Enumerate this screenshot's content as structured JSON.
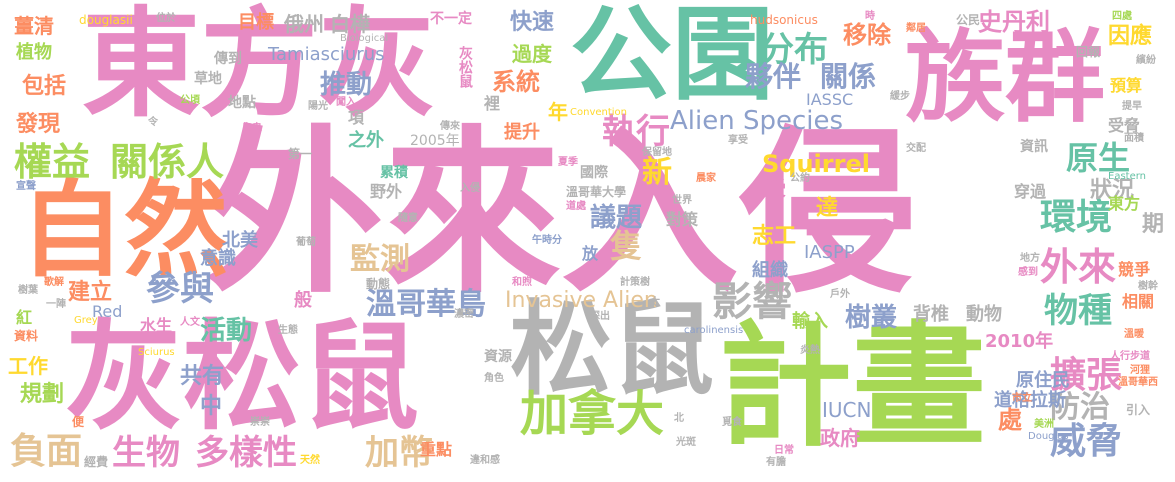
{
  "title": "",
  "colors": {
    "pink": "#e88bc4",
    "green": "#a6d854",
    "orange": "#fc8d62",
    "teal": "#66c2a5",
    "gray": "#b3b3b3",
    "yellow": "#ffd92f",
    "blue": "#8da0cb",
    "tan": "#e5c494"
  },
  "words": [
    {
      "text": "外來入侵",
      "color": "#e78ac3"
    },
    {
      "text": "東方灰",
      "color": "#e78ac3"
    },
    {
      "text": "族群",
      "color": "#e78ac3"
    },
    {
      "text": "公園",
      "color": "#66c2a5"
    },
    {
      "text": "自然",
      "color": "#fc8d62"
    },
    {
      "text": "灰松鼠",
      "color": "#e78ac3"
    },
    {
      "text": "松鼠",
      "color": "#b3b3b3"
    },
    {
      "text": "計畫",
      "color": "#a6d854"
    },
    {
      "text": "加拿大",
      "color": "#a6d854"
    },
    {
      "text": "權益",
      "color": "#a6d854"
    },
    {
      "text": "關係人",
      "color": "#a6d854"
    },
    {
      "text": "分布",
      "color": "#66c2a5"
    },
    {
      "text": "夥伴",
      "color": "#8da0cb"
    },
    {
      "text": "關係",
      "color": "#8da0cb"
    },
    {
      "text": "Alien Species",
      "color": "#8da0cb"
    },
    {
      "text": "執行",
      "color": "#e78ac3"
    },
    {
      "text": "影響",
      "color": "#b3b3b3"
    },
    {
      "text": "環境",
      "color": "#66c2a5"
    },
    {
      "text": "外來",
      "color": "#e78ac3"
    },
    {
      "text": "物種",
      "color": "#66c2a5"
    },
    {
      "text": "原生",
      "color": "#66c2a5"
    },
    {
      "text": "擴張",
      "color": "#e78ac3"
    },
    {
      "text": "威脅",
      "color": "#8da0cb"
    },
    {
      "text": "防治",
      "color": "#b3b3b3"
    },
    {
      "text": "生物",
      "color": "#e78ac3"
    },
    {
      "text": "多樣性",
      "color": "#e78ac3"
    },
    {
      "text": "負面",
      "color": "#e5c494"
    },
    {
      "text": "加幣",
      "color": "#e5c494"
    },
    {
      "text": "參與",
      "color": "#8da0cb"
    },
    {
      "text": "溫哥華島",
      "color": "#8da0cb"
    },
    {
      "text": "Invasive Alien",
      "color": "#e5c494"
    },
    {
      "text": "Squirrel",
      "color": "#ffd92f"
    },
    {
      "text": "監測",
      "color": "#e5c494"
    },
    {
      "text": "議題",
      "color": "#8da0cb"
    },
    {
      "text": "推動",
      "color": "#8da0cb"
    },
    {
      "text": "Tamiasciurus",
      "color": "#8da0cb"
    },
    {
      "text": "快速",
      "color": "#8da0cb"
    },
    {
      "text": "過度",
      "color": "#a6d854"
    },
    {
      "text": "系統",
      "color": "#fc8d62"
    },
    {
      "text": "移除",
      "color": "#fc8d62"
    },
    {
      "text": "史丹利",
      "color": "#e78ac3"
    },
    {
      "text": "因應",
      "color": "#ffd92f"
    },
    {
      "text": "預算",
      "color": "#ffd92f"
    },
    {
      "text": "受脅",
      "color": "#b3b3b3"
    },
    {
      "text": "狀況",
      "color": "#b3b3b3"
    },
    {
      "text": "東方",
      "color": "#a6d854"
    },
    {
      "text": "樹叢",
      "color": "#8da0cb"
    },
    {
      "text": "輸入",
      "color": "#a6d854"
    },
    {
      "text": "2010年",
      "color": "#e78ac3"
    },
    {
      "text": "原住民",
      "color": "#8da0cb"
    },
    {
      "text": "道格拉斯",
      "color": "#8da0cb"
    },
    {
      "text": "IUCN",
      "color": "#8da0cb"
    },
    {
      "text": "政府",
      "color": "#e78ac3"
    },
    {
      "text": "IASSC",
      "color": "#8da0cb"
    },
    {
      "text": "IASPP",
      "color": "#8da0cb"
    },
    {
      "text": "志工",
      "color": "#ffd92f"
    },
    {
      "text": "組織",
      "color": "#8da0cb"
    },
    {
      "text": "背椎",
      "color": "#b3b3b3"
    },
    {
      "text": "動物",
      "color": "#b3b3b3"
    },
    {
      "text": "活動",
      "color": "#66c2a5"
    },
    {
      "text": "共有",
      "color": "#8da0cb"
    },
    {
      "text": "工作",
      "color": "#ffd92f"
    },
    {
      "text": "規劃",
      "color": "#a6d854"
    },
    {
      "text": "建立",
      "color": "#fc8d62"
    },
    {
      "text": "包括",
      "color": "#fc8d62"
    },
    {
      "text": "發現",
      "color": "#fc8d62"
    },
    {
      "text": "植物",
      "color": "#a6d854"
    },
    {
      "text": "薑清",
      "color": "#fc8d62"
    },
    {
      "text": "douglasii",
      "color": "#ffd92f"
    },
    {
      "text": "目標",
      "color": "#fc8d62"
    },
    {
      "text": "俄州",
      "color": "#b3b3b3"
    },
    {
      "text": "白樺",
      "color": "#b3b3b3"
    },
    {
      "text": "不一定",
      "color": "#e78ac3"
    },
    {
      "text": "灰松鼠",
      "color": "#e78ac3"
    },
    {
      "text": "hudsonicus",
      "color": "#fc8d62"
    },
    {
      "text": "公民",
      "color": "#b3b3b3"
    },
    {
      "text": "Red",
      "color": "#8da0cb"
    },
    {
      "text": "水生",
      "color": "#e78ac3"
    },
    {
      "text": "中",
      "color": "#8da0cb"
    },
    {
      "text": "處",
      "color": "#fc8d62"
    },
    {
      "text": "國際",
      "color": "#b3b3b3"
    },
    {
      "text": "溫哥華大學",
      "color": "#b3b3b3"
    },
    {
      "text": "新",
      "color": "#ffd92f"
    },
    {
      "text": "隻",
      "color": "#e5c494"
    },
    {
      "text": "放",
      "color": "#8da0cb"
    },
    {
      "text": "受",
      "color": "#e78ac3"
    },
    {
      "text": "達",
      "color": "#ffd92f"
    },
    {
      "text": "期",
      "color": "#b3b3b3"
    },
    {
      "text": "競爭",
      "color": "#fc8d62"
    },
    {
      "text": "相關",
      "color": "#fc8d62"
    },
    {
      "text": "穿過",
      "color": "#b3b3b3"
    },
    {
      "text": "資訊",
      "color": "#b3b3b3"
    },
    {
      "text": "2005年",
      "color": "#b3b3b3"
    },
    {
      "text": "之外",
      "color": "#66c2a5"
    },
    {
      "text": "提升",
      "color": "#fc8d62"
    },
    {
      "text": "草地",
      "color": "#b3b3b3"
    },
    {
      "text": "傳到",
      "color": "#b3b3b3"
    },
    {
      "text": "地點",
      "color": "#b3b3b3"
    },
    {
      "text": "北美",
      "color": "#8da0cb"
    },
    {
      "text": "意識",
      "color": "#8da0cb"
    },
    {
      "text": "年",
      "color": "#ffd92f"
    },
    {
      "text": "裡",
      "color": "#b3b3b3"
    },
    {
      "text": "野外",
      "color": "#b3b3b3"
    },
    {
      "text": "累積",
      "color": "#66c2a5"
    },
    {
      "text": "項",
      "color": "#b3b3b3"
    },
    {
      "text": "重點",
      "color": "#fc8d62"
    },
    {
      "text": "資源",
      "color": "#b3b3b3"
    },
    {
      "text": "對策",
      "color": "#b3b3b3"
    },
    {
      "text": "回報",
      "color": "#b3b3b3"
    },
    {
      "text": "Convention",
      "color": "#ffd92f"
    },
    {
      "text": "Biological",
      "color": "#b3b3b3"
    },
    {
      "text": "carolinensis",
      "color": "#8da0cb"
    },
    {
      "text": "Douglas",
      "color": "#8da0cb"
    },
    {
      "text": "Sciurus",
      "color": "#ffd92f"
    },
    {
      "text": "Grey",
      "color": "#ffd92f"
    },
    {
      "text": "Eastern",
      "color": "#66c2a5"
    },
    {
      "text": "樹幹",
      "color": "#b3b3b3"
    },
    {
      "text": "紅",
      "color": "#a6d854"
    },
    {
      "text": "資料",
      "color": "#fc8d62"
    },
    {
      "text": "般",
      "color": "#e78ac3"
    },
    {
      "text": "第一",
      "color": "#b3b3b3"
    },
    {
      "text": "動態",
      "color": "#b3b3b3"
    },
    {
      "text": "人文",
      "color": "#e78ac3"
    },
    {
      "text": "經費",
      "color": "#b3b3b3"
    },
    {
      "text": "違和感",
      "color": "#b3b3b3"
    },
    {
      "text": "人行步道",
      "color": "#e78ac3"
    },
    {
      "text": "溫哥華西",
      "color": "#fc8d62"
    },
    {
      "text": "河狸",
      "color": "#fc8d62"
    },
    {
      "text": "引入",
      "color": "#b3b3b3"
    },
    {
      "text": "美洲",
      "color": "#a6d854"
    },
    {
      "text": "市立",
      "color": "#fc8d62"
    },
    {
      "text": "光斑",
      "color": "#b3b3b3"
    },
    {
      "text": "覓食",
      "color": "#b3b3b3"
    },
    {
      "text": "日常",
      "color": "#e78ac3"
    },
    {
      "text": "有膽",
      "color": "#b3b3b3"
    },
    {
      "text": "天然",
      "color": "#ffd92f"
    },
    {
      "text": "崇崇",
      "color": "#b3b3b3"
    },
    {
      "text": "便",
      "color": "#fc8d62"
    },
    {
      "text": "歌解",
      "color": "#fc8d62"
    },
    {
      "text": "宣聲",
      "color": "#8da0cb"
    },
    {
      "text": "樹葉",
      "color": "#b3b3b3"
    },
    {
      "text": "一陣",
      "color": "#b3b3b3"
    },
    {
      "text": "令",
      "color": "#b3b3b3"
    },
    {
      "text": "鬼鬼",
      "color": "#e78ac3"
    },
    {
      "text": "公頃",
      "color": "#a6d854"
    },
    {
      "text": "陽光",
      "color": "#b3b3b3"
    },
    {
      "text": "闖入",
      "color": "#e78ac3"
    },
    {
      "text": "傳來",
      "color": "#b3b3b3"
    },
    {
      "text": "保留地",
      "color": "#b3b3b3"
    },
    {
      "text": "夏季",
      "color": "#e78ac3"
    },
    {
      "text": "位於",
      "color": "#b3b3b3"
    },
    {
      "text": "時",
      "color": "#e78ac3"
    },
    {
      "text": "鄰居",
      "color": "#fc8d62"
    },
    {
      "text": "溫暖",
      "color": "#fc8d62"
    },
    {
      "text": "繽紛",
      "color": "#b3b3b3"
    },
    {
      "text": "提早",
      "color": "#b3b3b3"
    },
    {
      "text": "四處",
      "color": "#a6d854"
    },
    {
      "text": "交配",
      "color": "#b3b3b3"
    },
    {
      "text": "戶外",
      "color": "#b3b3b3"
    },
    {
      "text": "生態",
      "color": "#b3b3b3"
    },
    {
      "text": "葡萄",
      "color": "#b3b3b3"
    },
    {
      "text": "角色",
      "color": "#b3b3b3"
    },
    {
      "text": "炎熱",
      "color": "#b3b3b3"
    },
    {
      "text": "北",
      "color": "#b3b3b3"
    },
    {
      "text": "太",
      "color": "#b3b3b3"
    },
    {
      "text": "世界",
      "color": "#b3b3b3"
    },
    {
      "text": "和煦",
      "color": "#e78ac3"
    },
    {
      "text": "濃密",
      "color": "#b3b3b3"
    },
    {
      "text": "探出",
      "color": "#b3b3b3"
    },
    {
      "text": "計策樹",
      "color": "#b3b3b3"
    },
    {
      "text": "緩步",
      "color": "#b3b3b3"
    },
    {
      "text": "午時分",
      "color": "#8da0cb"
    },
    {
      "text": "道處",
      "color": "#e78ac3"
    },
    {
      "text": "公約",
      "color": "#b3b3b3"
    },
    {
      "text": "晨家",
      "color": "#fc8d62"
    },
    {
      "text": "享受",
      "color": "#b3b3b3"
    },
    {
      "text": "面積",
      "color": "#b3b3b3"
    },
    {
      "text": "感到",
      "color": "#e78ac3"
    },
    {
      "text": "地方",
      "color": "#b3b3b3"
    },
    {
      "text": "隨意",
      "color": "#b3b3b3"
    },
    {
      "text": "入侵",
      "color": "#b3b3b3"
    }
  ]
}
